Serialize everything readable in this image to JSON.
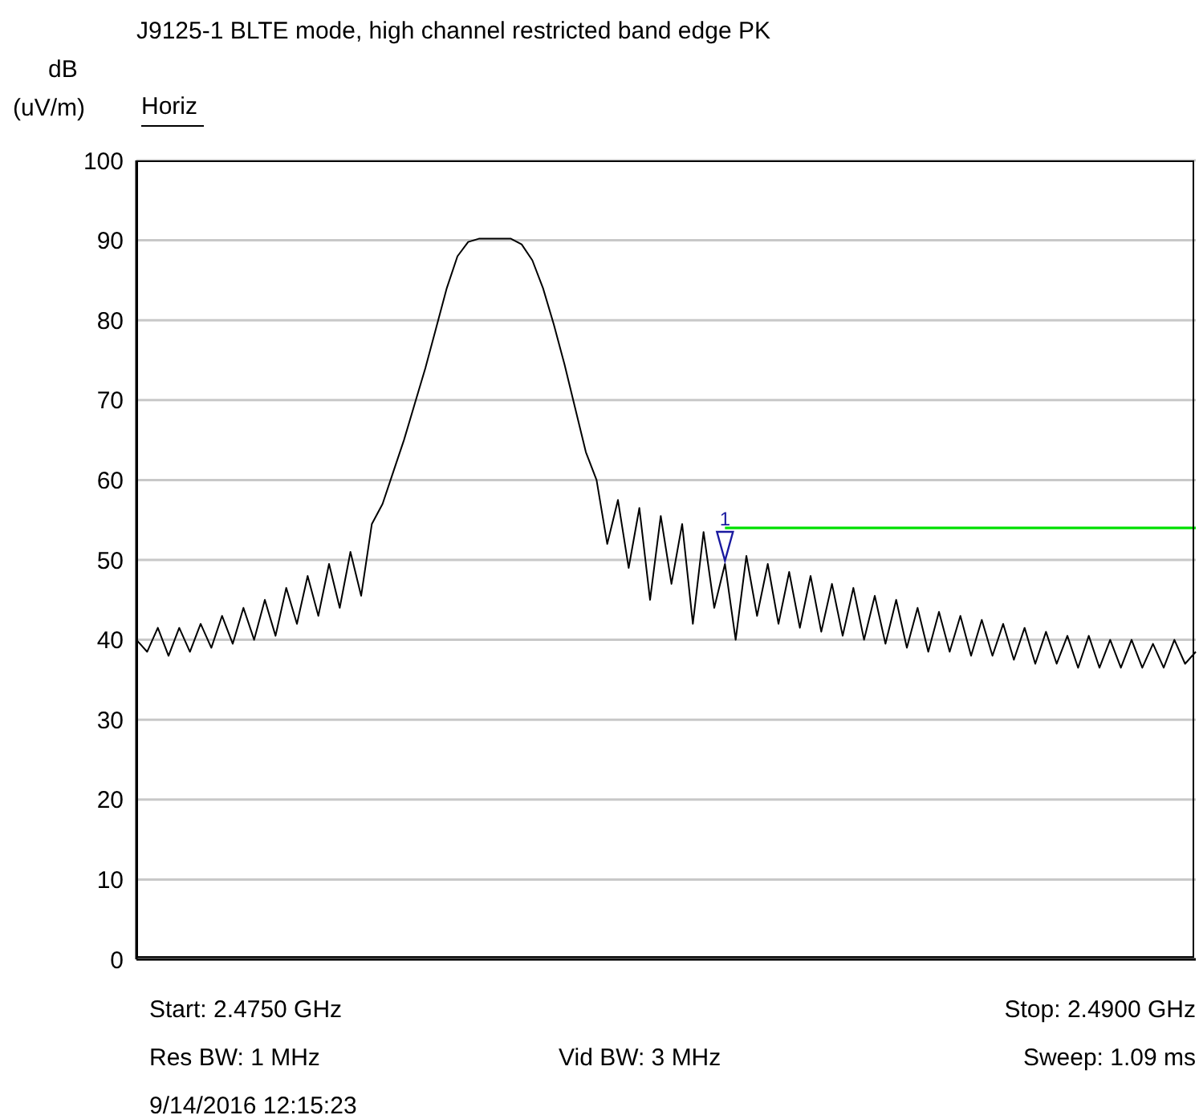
{
  "chart_data": {
    "type": "line",
    "title": "J9125-1 BLTE mode, high channel restricted band edge PK",
    "subtitle": "Horiz",
    "ylabel": "dB (uV/m)",
    "categories": [
      null,
      null,
      null,
      null,
      null,
      null,
      null,
      null,
      null,
      null,
      null,
      null,
      null,
      null,
      null,
      null,
      null,
      null,
      null,
      null,
      null,
      null,
      null,
      null,
      null,
      null,
      null,
      null,
      null,
      null,
      null,
      null,
      null,
      null,
      null,
      null,
      null,
      null,
      null,
      null,
      null,
      null,
      null,
      null,
      null,
      null,
      null,
      null,
      null,
      null,
      null,
      null,
      null,
      null,
      null,
      null,
      null,
      null,
      null,
      null,
      null,
      null,
      null,
      null,
      null,
      null,
      null,
      null,
      null,
      null,
      null,
      null,
      null,
      null,
      null,
      null,
      null,
      null,
      null,
      null,
      null,
      null,
      null,
      null,
      null,
      null,
      null,
      null,
      null,
      null,
      null,
      null,
      null,
      null,
      null,
      null,
      null,
      null,
      null,
      null
    ],
    "ylim": [
      0,
      100
    ],
    "yticks": [
      0,
      10,
      20,
      30,
      40,
      50,
      60,
      70,
      80,
      90,
      100
    ],
    "grid": "y",
    "tick_labels": "y",
    "series": [
      {
        "color": "#000000",
        "values": [
          40,
          38.5,
          41.5,
          38,
          41.5,
          38.5,
          42,
          39,
          43,
          39.5,
          44,
          40,
          45,
          40.5,
          46.5,
          42,
          48,
          43,
          49.5,
          44,
          51,
          45.5,
          54.5,
          57,
          61,
          65,
          69.5,
          74,
          79,
          84,
          88,
          89.8,
          90.2,
          90.2,
          90.2,
          90.2,
          89.5,
          87.5,
          84,
          79.5,
          74.5,
          69,
          63.5,
          60,
          52,
          57.5,
          49,
          56.5,
          45,
          55.5,
          47,
          54.5,
          42,
          53.5,
          44,
          49.5,
          40,
          50.5,
          43,
          49.5,
          42,
          48.5,
          41.5,
          48,
          41,
          47,
          40.5,
          46.5,
          40,
          45.5,
          39.5,
          45,
          39,
          44,
          38.5,
          43.5,
          38.5,
          43,
          38,
          42.5,
          38,
          42,
          37.5,
          41.5,
          37,
          41,
          37,
          40.5,
          36.5,
          40.5,
          36.5,
          40,
          36.5,
          40,
          36.5,
          39.5,
          36.5,
          40,
          37,
          38.5
        ]
      },
      {
        "color": "#00e000",
        "values": [
          null,
          null,
          null,
          null,
          null,
          null,
          null,
          null,
          null,
          null,
          null,
          null,
          null,
          null,
          null,
          null,
          null,
          null,
          null,
          null,
          null,
          null,
          null,
          null,
          null,
          null,
          null,
          null,
          null,
          null,
          null,
          null,
          null,
          null,
          null,
          null,
          null,
          null,
          null,
          null,
          null,
          null,
          null,
          null,
          null,
          null,
          null,
          null,
          null,
          null,
          null,
          null,
          null,
          null,
          null,
          54,
          54,
          54,
          54,
          54,
          54,
          54,
          54,
          54,
          54,
          54,
          54,
          54,
          54,
          54,
          54,
          54,
          54,
          54,
          54,
          54,
          54,
          54,
          54,
          54,
          54,
          54,
          54,
          54,
          54,
          54,
          54,
          54,
          54,
          54,
          54,
          54,
          54,
          54,
          54,
          54,
          54,
          54,
          54,
          54
        ]
      }
    ],
    "annotations": [
      "1",
      "Start: 2.4750 GHz",
      "Stop: 2.4900 GHz",
      "Res BW: 1 MHz",
      "Vid BW: 3 MHz",
      "Sweep: 1.09 ms",
      "9/14/2016 12:15:23"
    ]
  }
}
